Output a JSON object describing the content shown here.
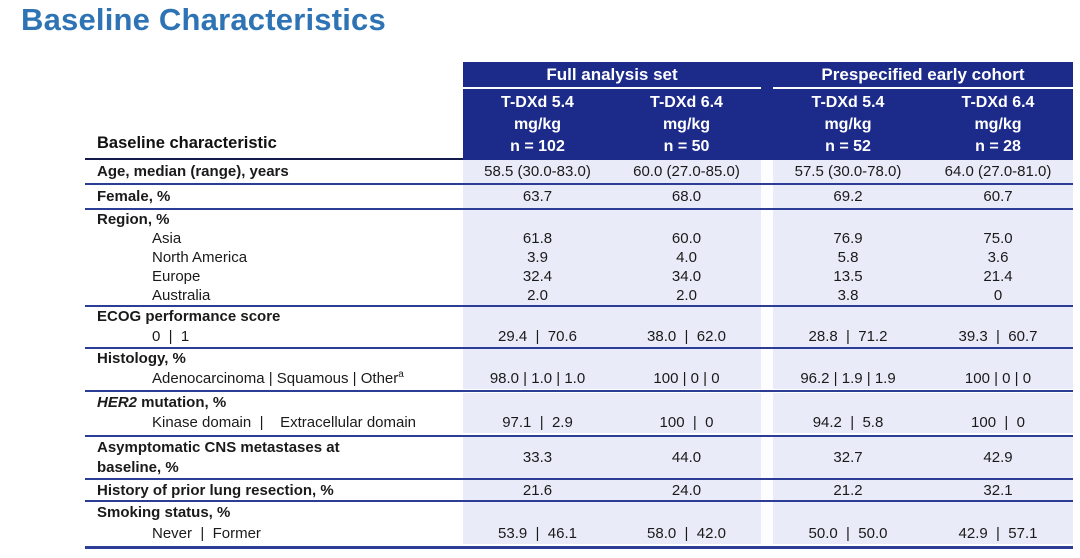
{
  "slide_title": "Baseline Characteristics",
  "colors": {
    "title_blue": "#2e74b5",
    "header_navy": "#1c2b8a",
    "rule_navy": "#2b3d94",
    "value_cell_bg": "#e9ecf8",
    "header_text": "#ffffff"
  },
  "table": {
    "label_header": "Baseline characteristic",
    "group_headers": [
      "Full analysis set",
      "Prespecified early cohort"
    ],
    "column_headers": [
      {
        "drug": "T-DXd 5.4",
        "dose": "mg/kg",
        "n": "n = 102"
      },
      {
        "drug": "T-DXd 6.4",
        "dose": "mg/kg",
        "n": "n = 50"
      },
      {
        "drug": "T-DXd 5.4",
        "dose": "mg/kg",
        "n": "n = 52"
      },
      {
        "drug": "T-DXd 6.4",
        "dose": "mg/kg",
        "n": "n = 28"
      }
    ],
    "rows": [
      {
        "label": "Age, median (range), years",
        "values": [
          "58.5 (30.0-83.0)",
          "60.0 (27.0-85.0)",
          "57.5 (30.0-78.0)",
          "64.0 (27.0-81.0)"
        ]
      },
      {
        "label": "Female, %",
        "values": [
          "63.7",
          "68.0",
          "69.2",
          "60.7"
        ]
      },
      {
        "label": "Region, %",
        "subrows": [
          {
            "label": "Asia",
            "values": [
              "61.8",
              "60.0",
              "76.9",
              "75.0"
            ]
          },
          {
            "label": "North America",
            "values": [
              "3.9",
              "4.0",
              "5.8",
              "3.6"
            ]
          },
          {
            "label": "Europe",
            "values": [
              "32.4",
              "34.0",
              "13.5",
              "21.4"
            ]
          },
          {
            "label": "Australia",
            "values": [
              "2.0",
              "2.0",
              "3.8",
              "0"
            ]
          }
        ]
      },
      {
        "label": "ECOG performance score",
        "subrows": [
          {
            "label": "0  |  1",
            "values": [
              "29.4  |  70.6",
              "38.0  |  62.0",
              "28.8  |  71.2",
              "39.3  |  60.7"
            ]
          }
        ]
      },
      {
        "label": "Histology, %",
        "subrows": [
          {
            "label": "Adenocarcinoma | Squamous | Other",
            "label_sup": "a",
            "values": [
              "98.0 | 1.0 | 1.0",
              "100 | 0 | 0",
              "96.2 | 1.9 | 1.9",
              "100 | 0 | 0"
            ]
          }
        ]
      },
      {
        "label_italic": "HER2",
        "label_rest": " mutation, %",
        "subrows": [
          {
            "label": "Kinase domain  |    Extracellular domain",
            "values": [
              "97.1  |  2.9",
              "100  |  0",
              "94.2  |  5.8",
              "100  |  0"
            ]
          }
        ]
      },
      {
        "label": "Asymptomatic CNS metastases at baseline, %",
        "values": [
          "33.3",
          "44.0",
          "32.7",
          "42.9"
        ]
      },
      {
        "label": "History of prior lung resection, %",
        "values": [
          "21.6",
          "24.0",
          "21.2",
          "32.1"
        ]
      },
      {
        "label": "Smoking status, %",
        "subrows": [
          {
            "label": "Never  |  Former",
            "values": [
              "53.9  |  46.1",
              "58.0  |  42.0",
              "50.0  |  50.0",
              "42.9  |  57.1"
            ]
          }
        ]
      }
    ]
  }
}
